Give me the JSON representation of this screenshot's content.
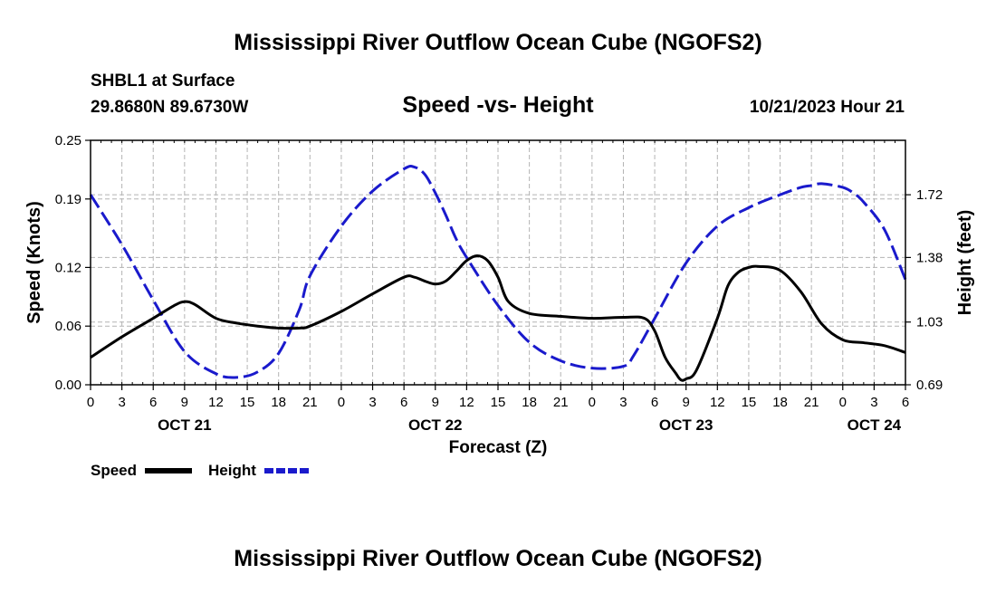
{
  "header": {
    "title": "Mississippi River Outflow Ocean Cube (NGOFS2)",
    "station": "SHBL1 at Surface",
    "coords": "29.8680N  89.6730W",
    "subtitle": "Speed -vs- Height",
    "datetime": "10/21/2023 Hour 21"
  },
  "footer": {
    "title": "Mississippi River Outflow Ocean Cube (NGOFS2)"
  },
  "colors": {
    "speed": "#000000",
    "height": "#1a1acc",
    "grid": "#b4b4b4"
  },
  "chart_data": {
    "type": "line",
    "title": "Speed -vs- Height",
    "xlabel": "Forecast (Z)",
    "ylabel": "Speed (Knots)",
    "y2label": "Height (feet)",
    "x_range": [
      0,
      78
    ],
    "x_ticks": [
      0,
      3,
      6,
      9,
      12,
      15,
      18,
      21,
      24,
      27,
      30,
      33,
      36,
      39,
      42,
      45,
      48,
      51,
      54,
      57,
      60,
      63,
      66,
      69,
      72,
      75,
      78
    ],
    "x_tick_labels": [
      "0",
      "3",
      "6",
      "9",
      "12",
      "15",
      "18",
      "21",
      "0",
      "3",
      "6",
      "9",
      "12",
      "15",
      "18",
      "21",
      "0",
      "3",
      "6",
      "9",
      "12",
      "15",
      "18",
      "21",
      "0",
      "3",
      "6"
    ],
    "date_labels": [
      {
        "x": 9,
        "label": "OCT 21"
      },
      {
        "x": 33,
        "label": "OCT 22"
      },
      {
        "x": 57,
        "label": "OCT 23"
      },
      {
        "x": 75,
        "label": "OCT 24"
      }
    ],
    "ylim": [
      0,
      0.25
    ],
    "y_ticks": [
      0.0,
      0.06,
      0.12,
      0.19,
      0.25
    ],
    "y_tick_labels": [
      "0.00",
      "0.06",
      "0.12",
      "0.19",
      "0.25"
    ],
    "y2lim": [
      0.69,
      2.015
    ],
    "y2_ticks": [
      0.69,
      1.03,
      1.38,
      1.72
    ],
    "y2_tick_labels": [
      "0.69",
      "1.03",
      "1.38",
      "1.72"
    ],
    "legend": [
      {
        "name": "Speed",
        "style": "solid"
      },
      {
        "name": "Height",
        "style": "dashed"
      }
    ],
    "series": [
      {
        "name": "Speed",
        "axis": "left",
        "x": [
          0,
          3,
          6,
          8,
          9,
          10,
          12,
          14,
          16,
          18,
          20,
          21,
          24,
          27,
          30,
          31,
          32,
          33,
          34,
          35,
          36,
          37,
          38,
          39,
          40,
          42,
          45,
          48,
          51,
          53,
          54,
          55,
          56,
          56.5,
          57,
          58,
          60,
          61,
          62,
          63,
          64,
          66,
          68,
          70,
          72,
          74,
          76,
          78
        ],
        "values": [
          0.028,
          0.049,
          0.068,
          0.081,
          0.085,
          0.082,
          0.068,
          0.063,
          0.06,
          0.058,
          0.058,
          0.06,
          0.075,
          0.093,
          0.11,
          0.11,
          0.106,
          0.103,
          0.106,
          0.116,
          0.127,
          0.132,
          0.127,
          0.11,
          0.085,
          0.073,
          0.07,
          0.068,
          0.069,
          0.068,
          0.055,
          0.028,
          0.012,
          0.005,
          0.006,
          0.015,
          0.068,
          0.101,
          0.115,
          0.12,
          0.121,
          0.117,
          0.095,
          0.062,
          0.046,
          0.043,
          0.04,
          0.033
        ]
      },
      {
        "name": "Height",
        "axis": "right",
        "x": [
          0,
          3,
          6,
          9,
          12,
          14,
          16,
          18,
          20,
          21,
          24,
          27,
          30,
          31,
          32,
          33,
          34,
          35,
          36,
          39,
          42,
          45,
          48,
          51,
          52,
          54,
          57,
          60,
          63,
          66,
          68,
          69,
          70,
          72,
          73,
          74,
          76,
          78
        ],
        "values": [
          1.72,
          1.45,
          1.15,
          0.87,
          0.75,
          0.73,
          0.76,
          0.86,
          1.1,
          1.28,
          1.55,
          1.74,
          1.86,
          1.87,
          1.83,
          1.73,
          1.61,
          1.48,
          1.38,
          1.12,
          0.92,
          0.82,
          0.78,
          0.79,
          0.85,
          1.05,
          1.35,
          1.55,
          1.65,
          1.72,
          1.76,
          1.77,
          1.78,
          1.76,
          1.73,
          1.68,
          1.53,
          1.26
        ]
      }
    ]
  }
}
